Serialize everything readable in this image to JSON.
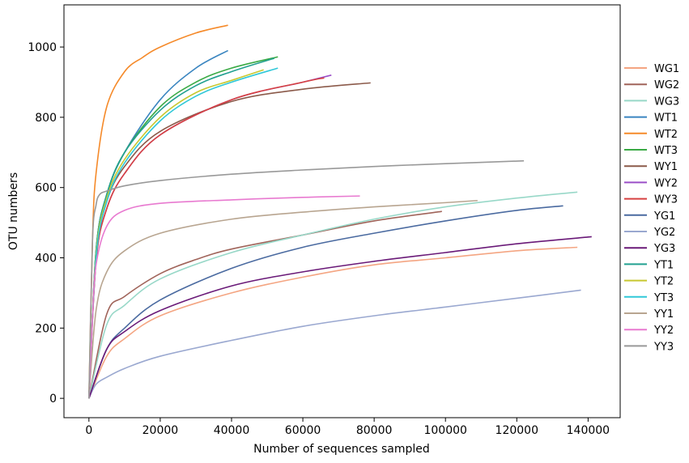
{
  "chart_data": {
    "type": "line",
    "title": "",
    "xlabel": "Number of sequences sampled",
    "ylabel": "OTU numbers",
    "xlim": [
      -7000,
      149000
    ],
    "ylim": [
      -55,
      1120
    ],
    "xticks": [
      0,
      20000,
      40000,
      60000,
      80000,
      100000,
      120000,
      140000
    ],
    "xtick_labels": [
      "0",
      "20000",
      "40000",
      "60000",
      "80000",
      "100000",
      "120000",
      "140000"
    ],
    "yticks": [
      0,
      200,
      400,
      600,
      800,
      1000
    ],
    "ytick_labels": [
      "0",
      "200",
      "400",
      "600",
      "800",
      "1000"
    ],
    "grid": false,
    "legend_position": "right",
    "series": [
      {
        "name": "WG1",
        "color": "#f4a582",
        "x": [
          0,
          5000,
          10000,
          20000,
          40000,
          60000,
          80000,
          100000,
          120000,
          137000
        ],
        "y": [
          0,
          120,
          170,
          235,
          300,
          345,
          380,
          400,
          420,
          430
        ]
      },
      {
        "name": "WG2",
        "color": "#a0645a",
        "x": [
          0,
          5000,
          10000,
          20000,
          30000,
          40000,
          60000,
          80000,
          99000
        ],
        "y": [
          0,
          240,
          290,
          355,
          395,
          425,
          465,
          505,
          532
        ]
      },
      {
        "name": "WG3",
        "color": "#98d8c8",
        "x": [
          0,
          5000,
          10000,
          20000,
          40000,
          60000,
          80000,
          100000,
          120000,
          137000
        ],
        "y": [
          0,
          210,
          265,
          340,
          415,
          465,
          510,
          545,
          570,
          587
        ]
      },
      {
        "name": "WT1",
        "color": "#3a85c0",
        "x": [
          0,
          2000,
          5000,
          10000,
          20000,
          30000,
          39000
        ],
        "y": [
          0,
          420,
          580,
          700,
          850,
          940,
          990
        ]
      },
      {
        "name": "WT2",
        "color": "#f58a2a",
        "x": [
          0,
          1000,
          2000,
          5000,
          10000,
          15000,
          20000,
          30000,
          39000
        ],
        "y": [
          0,
          450,
          640,
          830,
          930,
          970,
          1000,
          1040,
          1062
        ]
      },
      {
        "name": "WT3",
        "color": "#3aaa45",
        "x": [
          0,
          2000,
          5000,
          10000,
          20000,
          30000,
          40000,
          53000
        ],
        "y": [
          0,
          420,
          580,
          700,
          830,
          900,
          940,
          972
        ]
      },
      {
        "name": "WY1",
        "color": "#8b5a4a",
        "x": [
          0,
          2000,
          5000,
          10000,
          20000,
          40000,
          60000,
          79000
        ],
        "y": [
          0,
          400,
          560,
          660,
          760,
          845,
          880,
          898
        ]
      },
      {
        "name": "WY2",
        "color": "#9b4fc8",
        "x": [
          0,
          2000,
          5000,
          10000,
          20000,
          40000,
          60000,
          68000
        ],
        "y": [
          0,
          390,
          540,
          640,
          750,
          850,
          900,
          920
        ]
      },
      {
        "name": "WY3",
        "color": "#d64040",
        "x": [
          0,
          2000,
          5000,
          10000,
          20000,
          40000,
          60000,
          66000
        ],
        "y": [
          0,
          390,
          540,
          640,
          750,
          850,
          900,
          912
        ]
      },
      {
        "name": "YG1",
        "color": "#4a6aa0",
        "x": [
          0,
          5000,
          10000,
          20000,
          40000,
          60000,
          80000,
          100000,
          120000,
          133000
        ],
        "y": [
          0,
          140,
          200,
          280,
          370,
          430,
          470,
          505,
          535,
          548
        ]
      },
      {
        "name": "YG2",
        "color": "#9aa8d0",
        "x": [
          0,
          2000,
          5000,
          10000,
          20000,
          40000,
          60000,
          80000,
          100000,
          120000,
          138000
        ],
        "y": [
          0,
          40,
          60,
          85,
          120,
          165,
          205,
          235,
          260,
          285,
          308
        ]
      },
      {
        "name": "YG3",
        "color": "#6a1a78",
        "x": [
          0,
          5000,
          10000,
          20000,
          40000,
          60000,
          80000,
          100000,
          120000,
          141000
        ],
        "y": [
          0,
          140,
          190,
          250,
          320,
          360,
          390,
          415,
          440,
          460
        ]
      },
      {
        "name": "YT1",
        "color": "#22a090",
        "x": [
          0,
          2000,
          5000,
          10000,
          20000,
          30000,
          40000,
          52000
        ],
        "y": [
          0,
          420,
          580,
          700,
          820,
          890,
          930,
          968
        ]
      },
      {
        "name": "YT2",
        "color": "#c8c830",
        "x": [
          0,
          2000,
          5000,
          10000,
          20000,
          30000,
          40000,
          49000
        ],
        "y": [
          0,
          410,
          570,
          680,
          800,
          870,
          905,
          935
        ]
      },
      {
        "name": "YT3",
        "color": "#30c8d8",
        "x": [
          0,
          2000,
          5000,
          10000,
          20000,
          30000,
          40000,
          53000
        ],
        "y": [
          0,
          400,
          560,
          670,
          790,
          860,
          900,
          940
        ]
      },
      {
        "name": "YY1",
        "color": "#b8a590",
        "x": [
          0,
          2000,
          5000,
          10000,
          20000,
          40000,
          60000,
          80000,
          100000,
          109000
        ],
        "y": [
          0,
          250,
          360,
          420,
          470,
          510,
          530,
          545,
          557,
          563
        ]
      },
      {
        "name": "YY2",
        "color": "#e87ad0",
        "x": [
          0,
          1000,
          2000,
          5000,
          10000,
          20000,
          40000,
          60000,
          76000
        ],
        "y": [
          0,
          230,
          380,
          490,
          535,
          555,
          565,
          572,
          576
        ]
      },
      {
        "name": "YY3",
        "color": "#999999",
        "x": [
          0,
          1000,
          2000,
          3000,
          5000,
          10000,
          20000,
          40000,
          60000,
          80000,
          100000,
          122000
        ],
        "y": [
          0,
          450,
          550,
          580,
          590,
          605,
          620,
          638,
          650,
          660,
          668,
          676
        ]
      }
    ]
  }
}
